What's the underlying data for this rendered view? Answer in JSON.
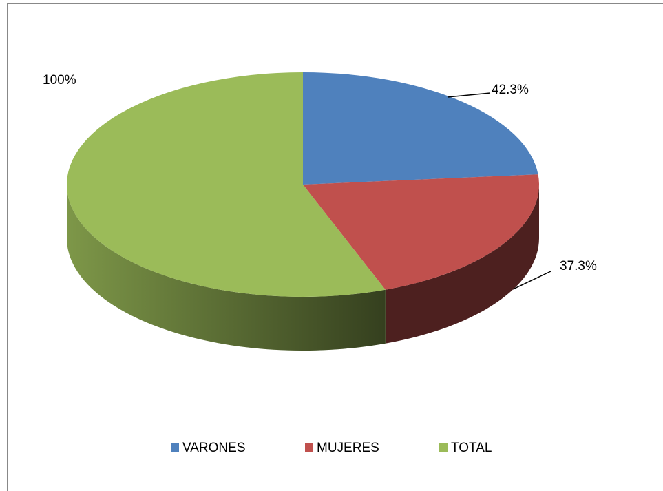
{
  "chart_data": {
    "type": "pie",
    "categories": [
      "VARONES",
      "MUJERES",
      "TOTAL"
    ],
    "values": [
      42.3,
      37.3,
      100
    ],
    "value_labels": [
      "42.3%",
      "37.3%",
      "100%"
    ],
    "colors": [
      "#4f81bd",
      "#c0504d",
      "#9bbb59"
    ],
    "legend": "bottom"
  }
}
